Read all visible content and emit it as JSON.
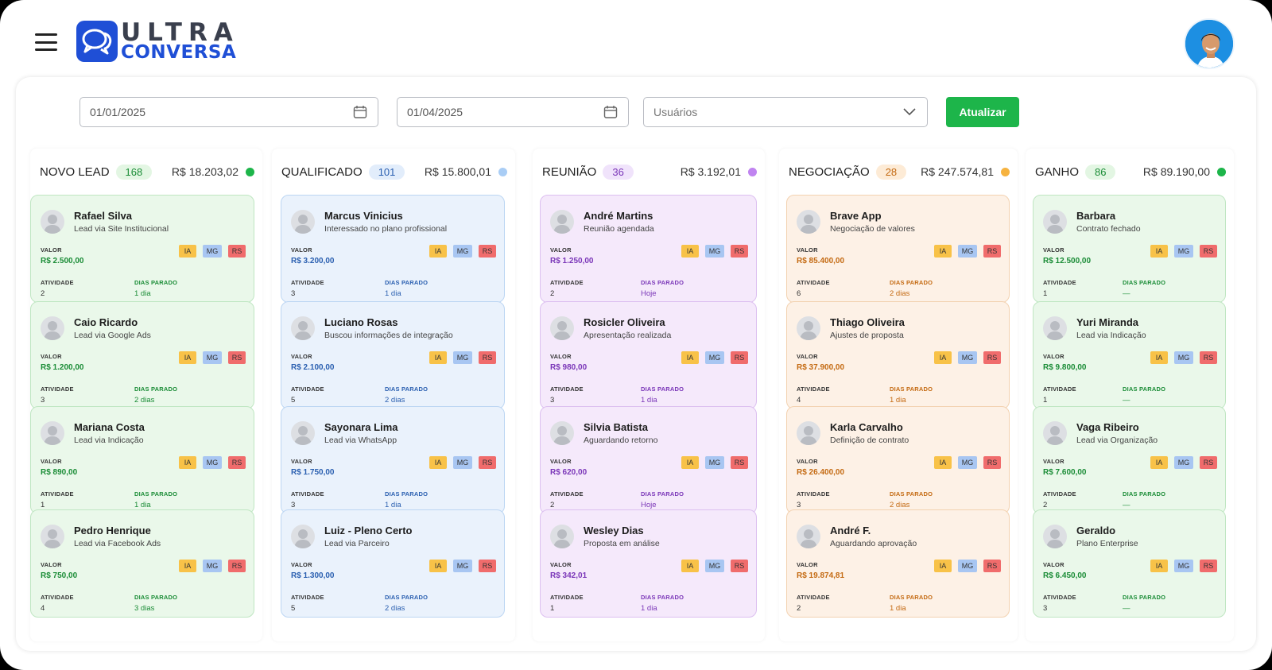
{
  "brand": {
    "line1": "ULTRA",
    "line2": "CONVERSA",
    "color": "#1f4fd6"
  },
  "header": {
    "menu_icon": "hamburger-icon",
    "avatar_icon": "user-avatar"
  },
  "filters": {
    "start_date": "01/01/2025",
    "end_date": "01/04/2025",
    "users_placeholder": "Usuários",
    "update_label": "Atualizar"
  },
  "card_labels": {
    "valor": "VALOR",
    "atividade": "ATIVIDADE",
    "dias_parado": "DIAS PARADO"
  },
  "tags": [
    "IA",
    "MG",
    "RS"
  ],
  "columns": [
    {
      "title": "NOVO LEAD",
      "count": "168",
      "total": "R$ 18.203,02",
      "color": "#1db54a",
      "bg": "#eaf8ea",
      "border": "#bfe6c2",
      "badge_bg": "#e3f6e3",
      "badge_fg": "#1a8c36",
      "cards": [
        {
          "name": "Rafael Silva",
          "desc": "Lead via Site Institucional",
          "value": "R$ 2.500,00",
          "activity": "2",
          "idle": "1 dia"
        },
        {
          "name": "Caio Ricardo",
          "desc": "Lead via Google Ads",
          "value": "R$ 1.200,00",
          "activity": "3",
          "idle": "2 dias"
        },
        {
          "name": "Mariana Costa",
          "desc": "Lead via Indicação",
          "value": "R$ 890,00",
          "activity": "1",
          "idle": "1 dia"
        },
        {
          "name": "Pedro Henrique",
          "desc": "Lead via Facebook Ads",
          "value": "R$ 750,00",
          "activity": "4",
          "idle": "3 dias"
        }
      ]
    },
    {
      "title": "QUALIFICADO",
      "count": "101",
      "total": "R$ 15.800,01",
      "color": "#a9cdf5",
      "bg": "#eaf2fc",
      "border": "#bcd6f3",
      "badge_bg": "#e2edfb",
      "badge_fg": "#2a5fb0",
      "cards": [
        {
          "name": "Marcus Vinicius",
          "desc": "Interessado no plano profissional",
          "value": "R$ 3.200,00",
          "activity": "3",
          "idle": "1 dia"
        },
        {
          "name": "Luciano Rosas",
          "desc": "Buscou informações de integração",
          "value": "R$ 2.100,00",
          "activity": "5",
          "idle": "2 dias"
        },
        {
          "name": "Sayonara Lima",
          "desc": "Lead via WhatsApp",
          "value": "R$ 1.750,00",
          "activity": "3",
          "idle": "1 dia"
        },
        {
          "name": "Luiz - Pleno Certo",
          "desc": "Lead via Parceiro",
          "value": "R$ 1.300,00",
          "activity": "5",
          "idle": "2 dias"
        }
      ]
    },
    {
      "title": "REUNIÃO",
      "count": "36",
      "total": "R$ 3.192,01",
      "color": "#c084f0",
      "bg": "#f5e9fb",
      "border": "#dcbff0",
      "badge_bg": "#f0e3fb",
      "badge_fg": "#7a36b8",
      "cards": [
        {
          "name": "André Martins",
          "desc": "Reunião agendada",
          "value": "R$ 1.250,00",
          "activity": "2",
          "idle": "Hoje"
        },
        {
          "name": "Rosicler Oliveira",
          "desc": "Apresentação realizada",
          "value": "R$ 980,00",
          "activity": "3",
          "idle": "1 dia"
        },
        {
          "name": "Silvia Batista",
          "desc": "Aguardando retorno",
          "value": "R$ 620,00",
          "activity": "2",
          "idle": "Hoje"
        },
        {
          "name": "Wesley Dias",
          "desc": "Proposta em análise",
          "value": "R$ 342,01",
          "activity": "1",
          "idle": "1 dia"
        }
      ]
    },
    {
      "title": "NEGOCIAÇÃO",
      "count": "28",
      "total": "R$ 247.574,81",
      "color": "#f6b340",
      "bg": "#fdf1e6",
      "border": "#f3d2b1",
      "badge_bg": "#fdebd6",
      "badge_fg": "#c46a12",
      "cards": [
        {
          "name": "Brave App",
          "desc": "Negociação de valores",
          "value": "R$ 85.400,00",
          "activity": "6",
          "idle": "2 dias"
        },
        {
          "name": "Thiago Oliveira",
          "desc": "Ajustes de proposta",
          "value": "R$ 37.900,00",
          "activity": "4",
          "idle": "1 dia"
        },
        {
          "name": "Karla Carvalho",
          "desc": "Definição de contrato",
          "value": "R$ 26.400,00",
          "activity": "3",
          "idle": "2 dias"
        },
        {
          "name": "André F.",
          "desc": "Aguardando aprovação",
          "value": "R$ 19.874,81",
          "activity": "2",
          "idle": "1 dia"
        }
      ]
    },
    {
      "title": "GANHO",
      "count": "86",
      "total": "R$ 89.190,00",
      "color": "#1db54a",
      "bg": "#eaf8ea",
      "border": "#bfe6c2",
      "badge_bg": "#e3f6e3",
      "badge_fg": "#1a8c36",
      "cards": [
        {
          "name": "Barbara",
          "desc": "Contrato fechado",
          "value": "R$ 12.500,00",
          "activity": "1",
          "idle": "—"
        },
        {
          "name": "Yuri Miranda",
          "desc": "Lead via Indicação",
          "value": "R$ 9.800,00",
          "activity": "1",
          "idle": "—"
        },
        {
          "name": "Vaga Ribeiro",
          "desc": "Lead via Organização",
          "value": "R$ 7.600,00",
          "activity": "2",
          "idle": "—"
        },
        {
          "name": "Geraldo",
          "desc": "Plano Enterprise",
          "value": "R$ 6.450,00",
          "activity": "3",
          "idle": "—"
        }
      ]
    }
  ]
}
